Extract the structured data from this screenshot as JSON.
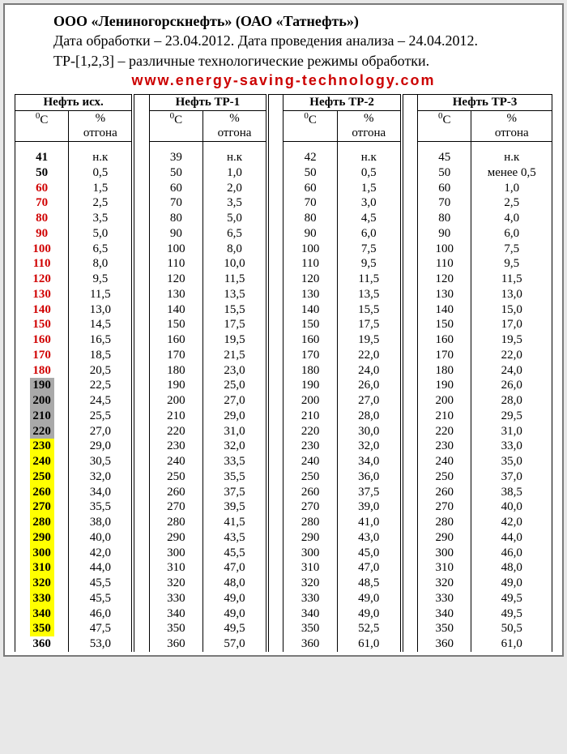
{
  "header": {
    "company": "ООО «Лениногорскнефть» (ОАО «Татнефть»)",
    "dates": "Дата обработки – 23.04.2012. Дата проведения анализа – 24.04.2012.",
    "note": "ТР-[1,2,3] – различные технологические режимы обработки.",
    "watermark": "www.energy-saving-technology.com"
  },
  "groups": [
    {
      "title": "Нефть исх."
    },
    {
      "title": "Нефть ТР-1"
    },
    {
      "title": "Нефть ТР-2"
    },
    {
      "title": "Нефть ТР-3"
    }
  ],
  "subheaders": {
    "tempUnit": "⁰С",
    "pct": "%",
    "otgon": "отгона"
  },
  "rows": [
    {
      "style": "",
      "t0": "41",
      "v0": "н.к",
      "t1": "39",
      "v1": "н.к",
      "t2": "42",
      "v2": "н.к",
      "t3": "45",
      "v3": "н.к"
    },
    {
      "style": "",
      "t0": "50",
      "v0": "0,5",
      "t1": "50",
      "v1": "1,0",
      "t2": "50",
      "v2": "0,5",
      "t3": "50",
      "v3": "менее 0,5"
    },
    {
      "style": "red",
      "t0": "60",
      "v0": "1,5",
      "t1": "60",
      "v1": "2,0",
      "t2": "60",
      "v2": "1,5",
      "t3": "60",
      "v3": "1,0"
    },
    {
      "style": "red",
      "t0": "70",
      "v0": "2,5",
      "t1": "70",
      "v1": "3,5",
      "t2": "70",
      "v2": "3,0",
      "t3": "70",
      "v3": "2,5"
    },
    {
      "style": "red",
      "t0": "80",
      "v0": "3,5",
      "t1": "80",
      "v1": "5,0",
      "t2": "80",
      "v2": "4,5",
      "t3": "80",
      "v3": "4,0"
    },
    {
      "style": "red",
      "t0": "90",
      "v0": "5,0",
      "t1": "90",
      "v1": "6,5",
      "t2": "90",
      "v2": "6,0",
      "t3": "90",
      "v3": "6,0"
    },
    {
      "style": "red",
      "t0": "100",
      "v0": "6,5",
      "t1": "100",
      "v1": "8,0",
      "t2": "100",
      "v2": "7,5",
      "t3": "100",
      "v3": "7,5"
    },
    {
      "style": "red",
      "t0": "110",
      "v0": "8,0",
      "t1": "110",
      "v1": "10,0",
      "t2": "110",
      "v2": "9,5",
      "t3": "110",
      "v3": "9,5"
    },
    {
      "style": "red",
      "t0": "120",
      "v0": "9,5",
      "t1": "120",
      "v1": "11,5",
      "t2": "120",
      "v2": "11,5",
      "t3": "120",
      "v3": "11,5"
    },
    {
      "style": "red",
      "t0": "130",
      "v0": "11,5",
      "t1": "130",
      "v1": "13,5",
      "t2": "130",
      "v2": "13,5",
      "t3": "130",
      "v3": "13,0"
    },
    {
      "style": "red",
      "t0": "140",
      "v0": "13,0",
      "t1": "140",
      "v1": "15,5",
      "t2": "140",
      "v2": "15,5",
      "t3": "140",
      "v3": "15,0"
    },
    {
      "style": "red",
      "t0": "150",
      "v0": "14,5",
      "t1": "150",
      "v1": "17,5",
      "t2": "150",
      "v2": "17,5",
      "t3": "150",
      "v3": "17,0"
    },
    {
      "style": "red",
      "t0": "160",
      "v0": "16,5",
      "t1": "160",
      "v1": "19,5",
      "t2": "160",
      "v2": "19,5",
      "t3": "160",
      "v3": "19,5"
    },
    {
      "style": "red",
      "t0": "170",
      "v0": "18,5",
      "t1": "170",
      "v1": "21,5",
      "t2": "170",
      "v2": "22,0",
      "t3": "170",
      "v3": "22,0"
    },
    {
      "style": "red",
      "t0": "180",
      "v0": "20,5",
      "t1": "180",
      "v1": "23,0",
      "t2": "180",
      "v2": "24,0",
      "t3": "180",
      "v3": "24,0"
    },
    {
      "style": "grey",
      "t0": "190",
      "v0": "22,5",
      "t1": "190",
      "v1": "25,0",
      "t2": "190",
      "v2": "26,0",
      "t3": "190",
      "v3": "26,0"
    },
    {
      "style": "grey",
      "t0": "200",
      "v0": "24,5",
      "t1": "200",
      "v1": "27,0",
      "t2": "200",
      "v2": "27,0",
      "t3": "200",
      "v3": "28,0"
    },
    {
      "style": "grey",
      "t0": "210",
      "v0": "25,5",
      "t1": "210",
      "v1": "29,0",
      "t2": "210",
      "v2": "28,0",
      "t3": "210",
      "v3": "29,5"
    },
    {
      "style": "grey",
      "t0": "220",
      "v0": "27,0",
      "t1": "220",
      "v1": "31,0",
      "t2": "220",
      "v2": "30,0",
      "t3": "220",
      "v3": "31,0"
    },
    {
      "style": "yel",
      "t0": "230",
      "v0": "29,0",
      "t1": "230",
      "v1": "32,0",
      "t2": "230",
      "v2": "32,0",
      "t3": "230",
      "v3": "33,0"
    },
    {
      "style": "yel",
      "t0": "240",
      "v0": "30,5",
      "t1": "240",
      "v1": "33,5",
      "t2": "240",
      "v2": "34,0",
      "t3": "240",
      "v3": "35,0"
    },
    {
      "style": "yel",
      "t0": "250",
      "v0": "32,0",
      "t1": "250",
      "v1": "35,5",
      "t2": "250",
      "v2": "36,0",
      "t3": "250",
      "v3": "37,0"
    },
    {
      "style": "yel",
      "t0": "260",
      "v0": "34,0",
      "t1": "260",
      "v1": "37,5",
      "t2": "260",
      "v2": "37,5",
      "t3": "260",
      "v3": "38,5"
    },
    {
      "style": "yel",
      "t0": "270",
      "v0": "35,5",
      "t1": "270",
      "v1": "39,5",
      "t2": "270",
      "v2": "39,0",
      "t3": "270",
      "v3": "40,0"
    },
    {
      "style": "yel",
      "t0": "280",
      "v0": "38,0",
      "t1": "280",
      "v1": "41,5",
      "t2": "280",
      "v2": "41,0",
      "t3": "280",
      "v3": "42,0"
    },
    {
      "style": "yel",
      "t0": "290",
      "v0": "40,0",
      "t1": "290",
      "v1": "43,5",
      "t2": "290",
      "v2": "43,0",
      "t3": "290",
      "v3": "44,0"
    },
    {
      "style": "yel",
      "t0": "300",
      "v0": "42,0",
      "t1": "300",
      "v1": "45,5",
      "t2": "300",
      "v2": "45,0",
      "t3": "300",
      "v3": "46,0"
    },
    {
      "style": "yel",
      "t0": "310",
      "v0": "44,0",
      "t1": "310",
      "v1": "47,0",
      "t2": "310",
      "v2": "47,0",
      "t3": "310",
      "v3": "48,0"
    },
    {
      "style": "yel",
      "t0": "320",
      "v0": "45,5",
      "t1": "320",
      "v1": "48,0",
      "t2": "320",
      "v2": "48,5",
      "t3": "320",
      "v3": "49,0"
    },
    {
      "style": "yel",
      "t0": "330",
      "v0": "45,5",
      "t1": "330",
      "v1": "49,0",
      "t2": "330",
      "v2": "49,0",
      "t3": "330",
      "v3": "49,5"
    },
    {
      "style": "yel",
      "t0": "340",
      "v0": "46,0",
      "t1": "340",
      "v1": "49,0",
      "t2": "340",
      "v2": "49,0",
      "t3": "340",
      "v3": "49,5"
    },
    {
      "style": "yel",
      "t0": "350",
      "v0": "47,5",
      "t1": "350",
      "v1": "49,5",
      "t2": "350",
      "v2": "52,5",
      "t3": "350",
      "v3": "50,5"
    },
    {
      "style": "",
      "t0": "360",
      "v0": "53,0",
      "t1": "360",
      "v1": "57,0",
      "t2": "360",
      "v2": "61,0",
      "t3": "360",
      "v3": "61,0"
    }
  ]
}
